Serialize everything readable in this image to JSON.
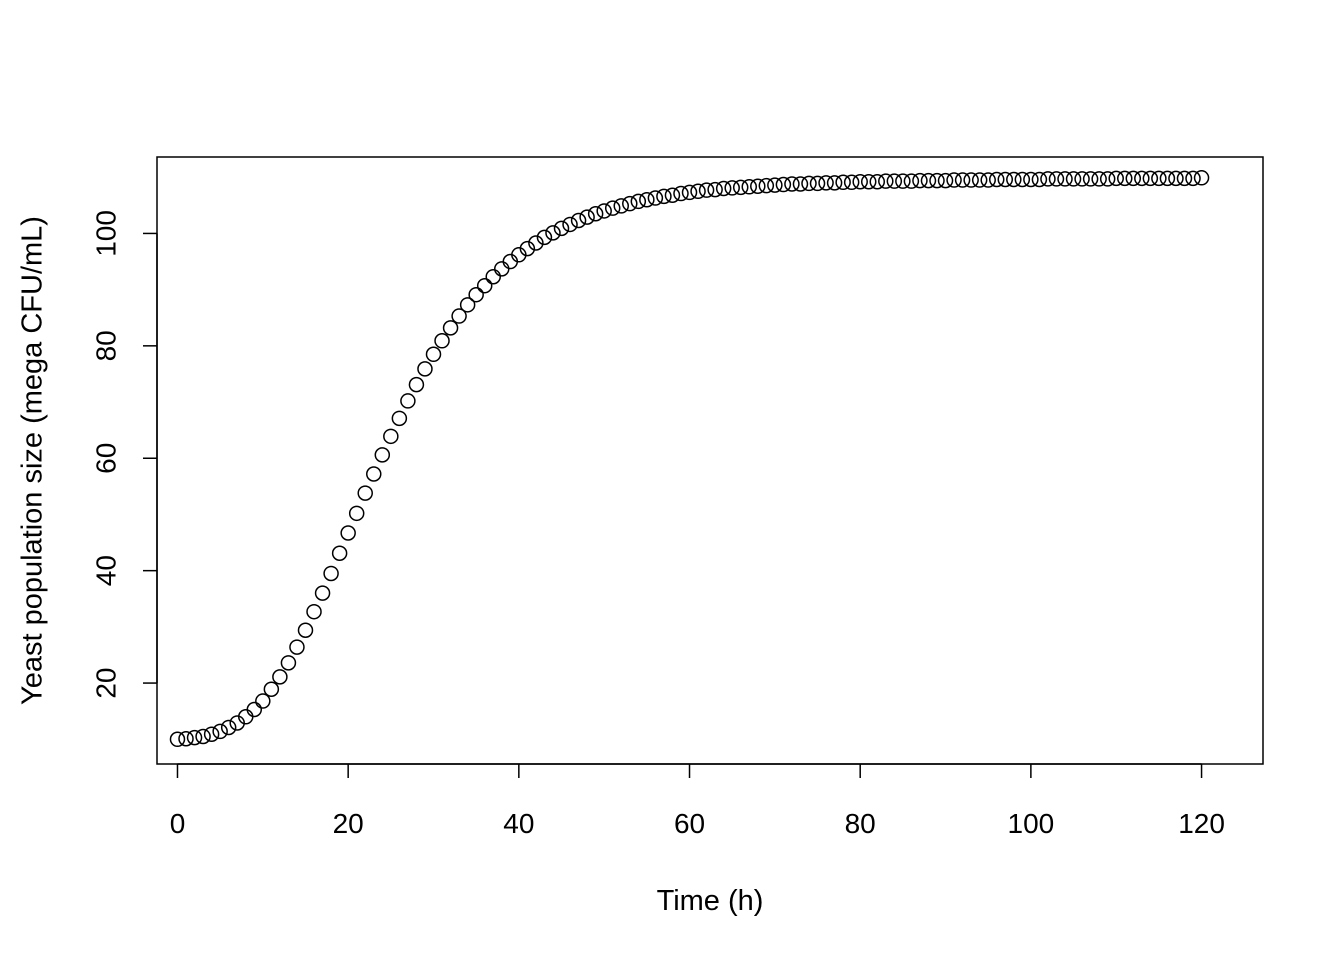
{
  "chart_data": {
    "type": "scatter",
    "title": "",
    "xlabel": "Time (h)",
    "ylabel": "Yeast population size (mega CFU/mL)",
    "xlim": [
      -2.4,
      127.2
    ],
    "ylim": [
      5.6,
      113.6
    ],
    "xticks": [
      0,
      20,
      40,
      60,
      80,
      100,
      120
    ],
    "yticks": [
      20,
      40,
      60,
      80,
      100
    ],
    "xtick_labels": [
      "0",
      "20",
      "40",
      "60",
      "80",
      "100",
      "120"
    ],
    "ytick_labels": [
      "20",
      "40",
      "60",
      "80",
      "100"
    ],
    "grid": false,
    "legend": "none",
    "marker": "open-circle",
    "series": [
      {
        "x": [
          0,
          1,
          2,
          3,
          4,
          5,
          6,
          7,
          8,
          9,
          10,
          11,
          12,
          13,
          14,
          15,
          16,
          17,
          18,
          19,
          20,
          21,
          22,
          23,
          24,
          25,
          26,
          27,
          28,
          29,
          30,
          31,
          32,
          33,
          34,
          35,
          36,
          37,
          38,
          39,
          40,
          41,
          42,
          43,
          44,
          45,
          46,
          47,
          48,
          49,
          50,
          51,
          52,
          53,
          54,
          55,
          56,
          57,
          58,
          59,
          60,
          61,
          62,
          63,
          64,
          65,
          66,
          67,
          68,
          69,
          70,
          71,
          72,
          73,
          74,
          75,
          76,
          77,
          78,
          79,
          80,
          81,
          82,
          83,
          84,
          85,
          86,
          87,
          88,
          89,
          90,
          91,
          92,
          93,
          94,
          95,
          96,
          97,
          98,
          99,
          100,
          101,
          102,
          103,
          104,
          105,
          106,
          107,
          108,
          109,
          110,
          111,
          112,
          113,
          114,
          115,
          116,
          117,
          118,
          119,
          120
        ],
        "y": [
          10,
          10.1,
          10.3,
          10.5,
          10.9,
          11.4,
          12.1,
          12.9,
          14,
          15.3,
          16.8,
          18.9,
          21.1,
          23.6,
          26.4,
          29.4,
          32.7,
          36,
          39.5,
          43.1,
          46.7,
          50.2,
          53.8,
          57.2,
          60.6,
          63.9,
          67.1,
          70.2,
          73.1,
          75.9,
          78.5,
          80.9,
          83.2,
          85.3,
          87.3,
          89.1,
          90.7,
          92.3,
          93.7,
          95,
          96.2,
          97.3,
          98.3,
          99.3,
          100.1,
          100.9,
          101.6,
          102.3,
          102.9,
          103.5,
          104,
          104.5,
          104.9,
          105.3,
          105.7,
          106,
          106.3,
          106.6,
          106.8,
          107.1,
          107.3,
          107.5,
          107.7,
          107.8,
          108,
          108.1,
          108.2,
          108.3,
          108.4,
          108.5,
          108.6,
          108.7,
          108.8,
          108.8,
          108.9,
          108.9,
          109,
          109,
          109.1,
          109.1,
          109.2,
          109.2,
          109.2,
          109.3,
          109.3,
          109.3,
          109.3,
          109.4,
          109.4,
          109.4,
          109.4,
          109.5,
          109.5,
          109.5,
          109.5,
          109.5,
          109.6,
          109.6,
          109.6,
          109.6,
          109.6,
          109.6,
          109.7,
          109.7,
          109.7,
          109.7,
          109.7,
          109.7,
          109.7,
          109.7,
          109.8,
          109.8,
          109.8,
          109.8,
          109.8,
          109.8,
          109.8,
          109.8,
          109.8,
          109.8,
          109.9
        ]
      }
    ]
  }
}
